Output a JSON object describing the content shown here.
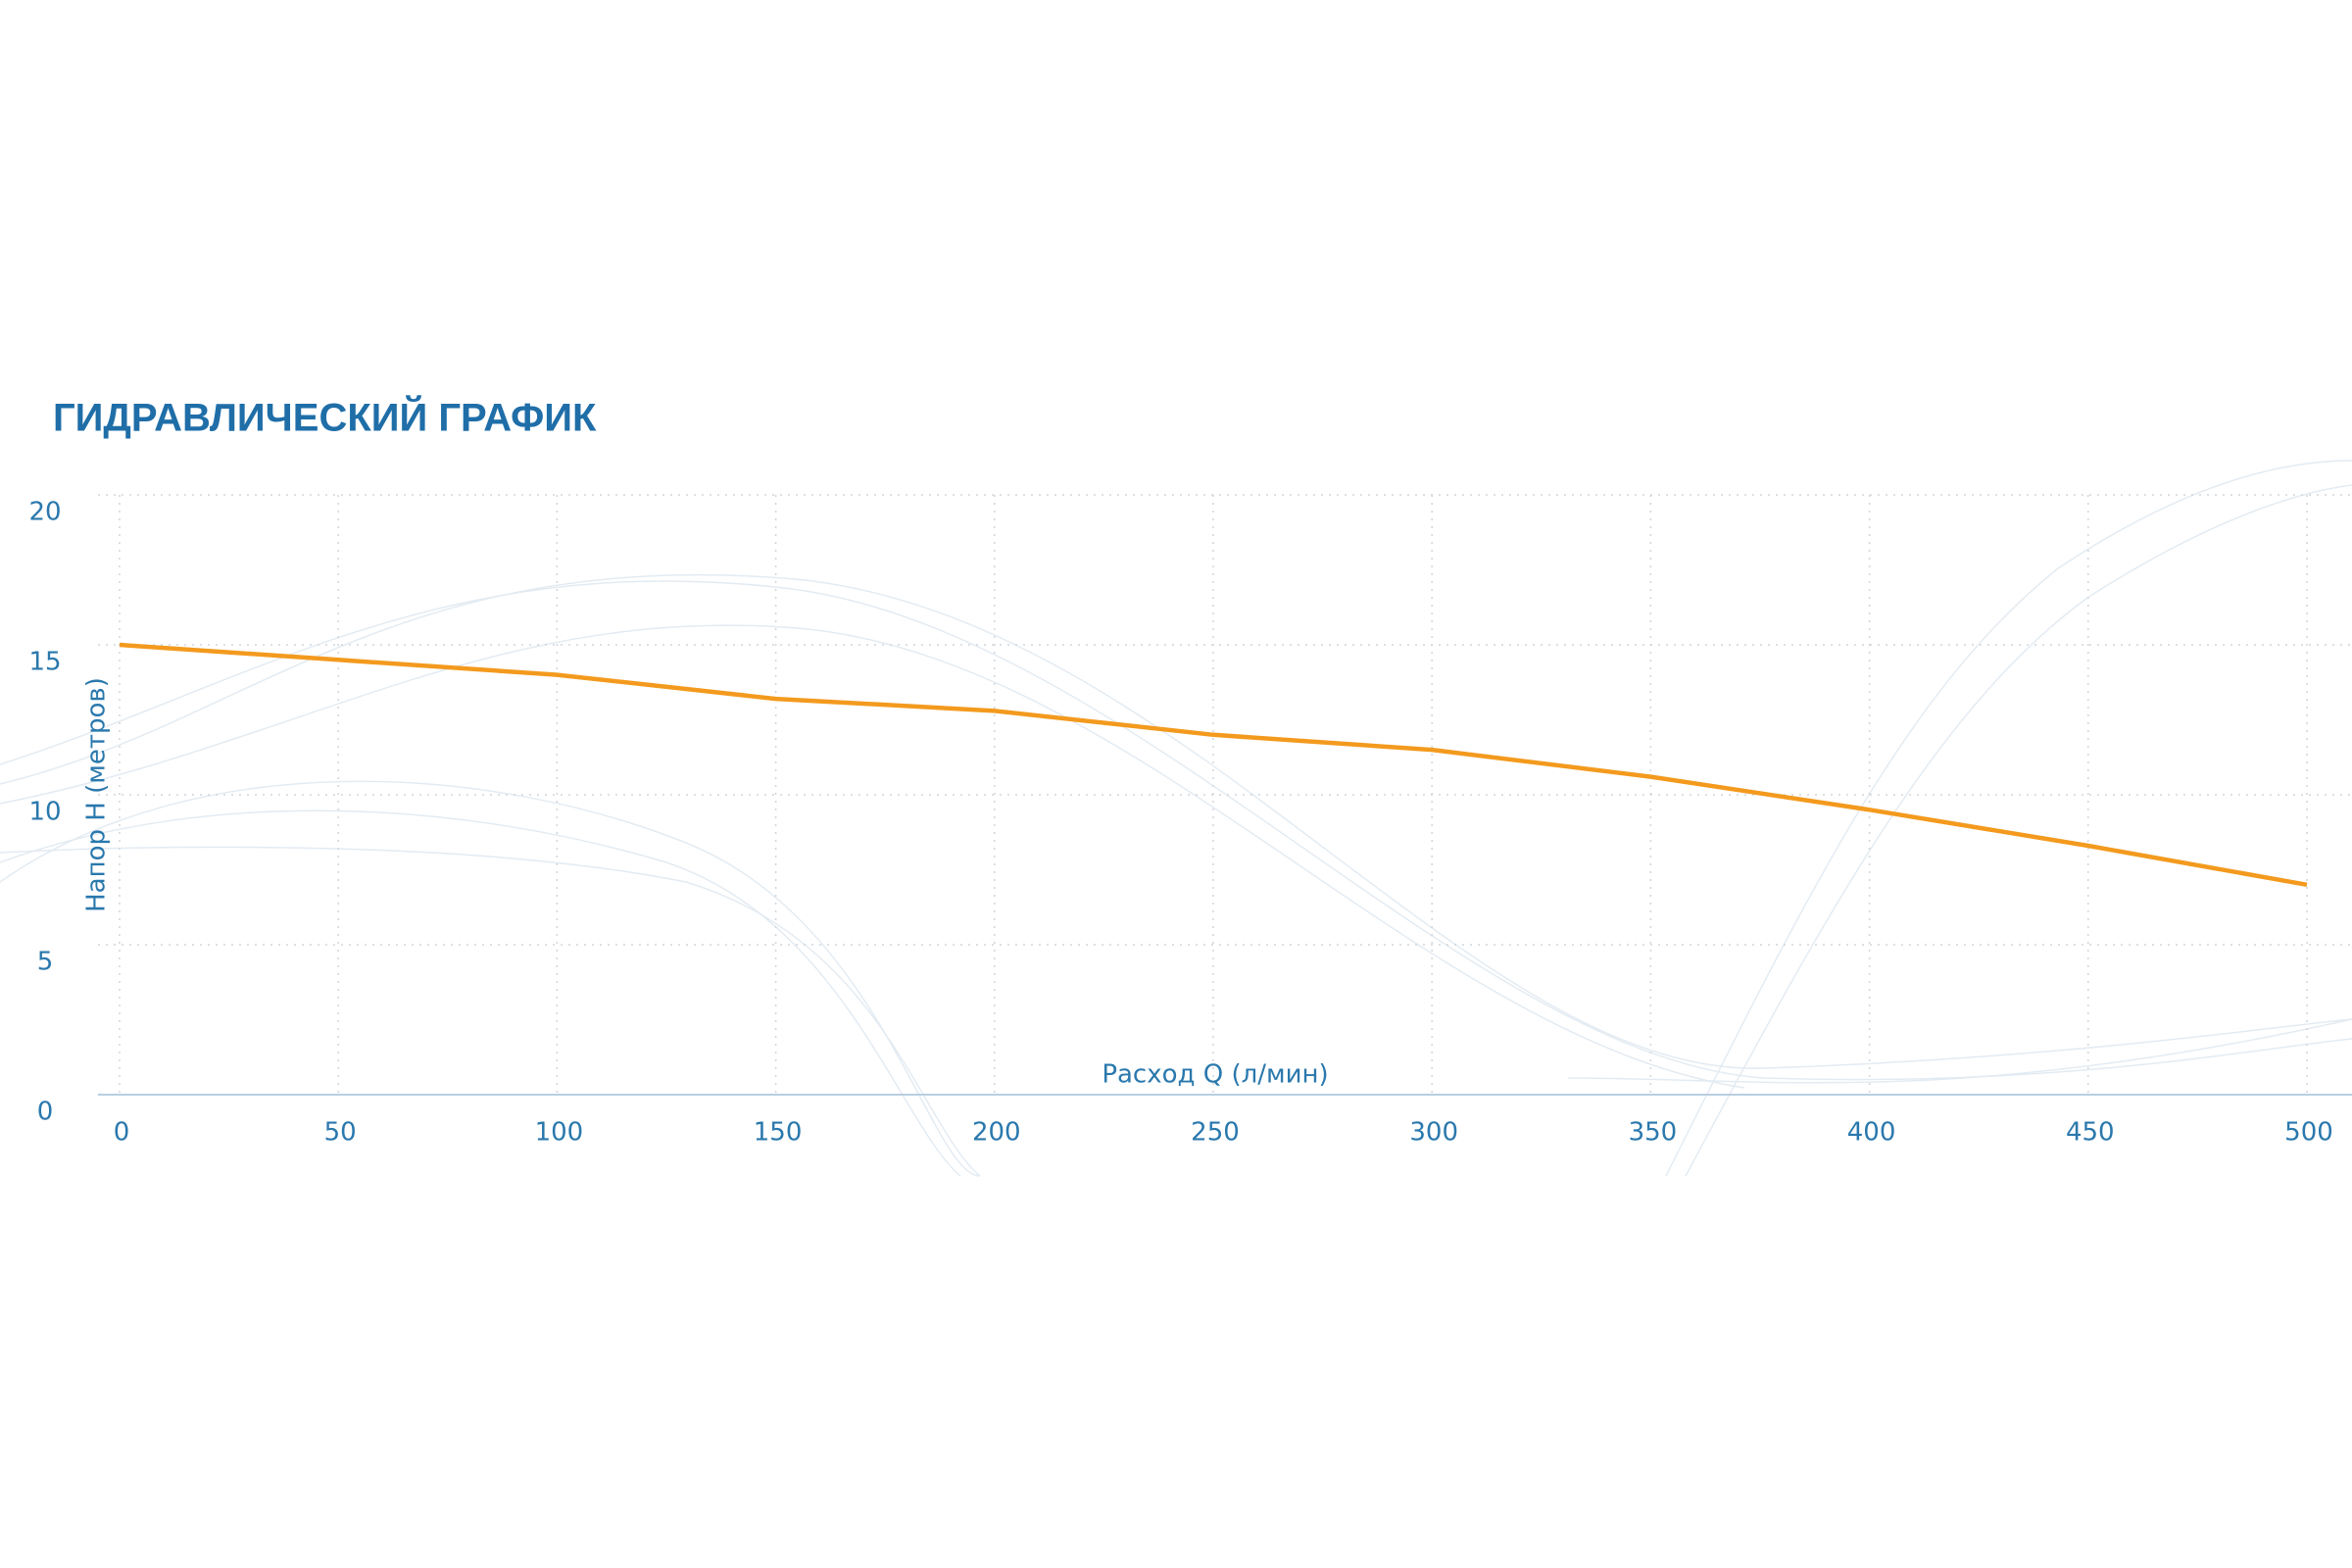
{
  "chart_data": {
    "type": "line",
    "title": "ГИДРАВЛИЧЕСКИЙ ГРАФИК",
    "x_label": "Расход Q (л/мин)",
    "y_label": "Напор H (метров)",
    "x": [
      0,
      50,
      100,
      150,
      200,
      250,
      300,
      350,
      400,
      450,
      500
    ],
    "series": [
      {
        "color": "#f39a1e",
        "values": [
          15.0,
          14.5,
          14.0,
          13.2,
          12.8,
          12.0,
          11.5,
          10.6,
          9.5,
          8.3,
          7.0
        ]
      }
    ],
    "xlim": [
      0,
      500
    ],
    "xticks": [
      0,
      50,
      100,
      150,
      200,
      250,
      300,
      350,
      400,
      450,
      500
    ],
    "ylim": [
      0,
      20
    ],
    "yticks": [
      0,
      5,
      10,
      15,
      20
    ],
    "grid": true
  }
}
